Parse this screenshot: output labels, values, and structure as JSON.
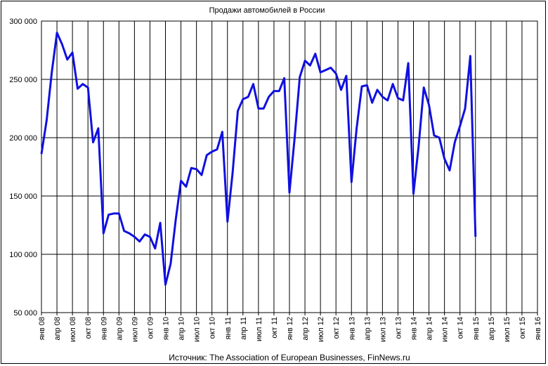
{
  "chart_data": {
    "type": "line",
    "title": "Продажи автомобилей в России",
    "source": "Источник: The Association of European Businesses, FinNews.ru",
    "ylim": [
      50000,
      300000
    ],
    "yticks": [
      50000,
      100000,
      150000,
      200000,
      250000,
      300000
    ],
    "ytick_labels": [
      "50 000",
      "100 000",
      "150 000",
      "200 000",
      "250 000",
      "300 000"
    ],
    "xtick_labels": [
      "янв 08",
      "апр 08",
      "июл 08",
      "окт 08",
      "янв 09",
      "апр 09",
      "июл 09",
      "окт 09",
      "янв 10",
      "апр 10",
      "июл 10",
      "окт 10",
      "янв 11",
      "апр 11",
      "июл 11",
      "окт 11",
      "янв 12",
      "апр 12",
      "июл 12",
      "окт 12",
      "янв 13",
      "апр 13",
      "июл 13",
      "окт 13",
      "янв 14",
      "апр 14",
      "июл 14",
      "окт 14",
      "янв 15",
      "апр 15",
      "июл 15",
      "окт 15",
      "янв 16"
    ],
    "grid": true,
    "line_color": "#1010e0",
    "series": [
      {
        "values": [
          186000,
          215000,
          256000,
          290000,
          280000,
          267000,
          273000,
          242000,
          246000,
          243000,
          196000,
          208000,
          118000,
          134000,
          135000,
          135000,
          120000,
          118000,
          115000,
          111000,
          117000,
          115000,
          105000,
          127000,
          74000,
          92000,
          130000,
          163000,
          158000,
          174000,
          173000,
          168000,
          185000,
          188000,
          190000,
          205000,
          128000,
          170000,
          223000,
          233000,
          235000,
          246000,
          225000,
          225000,
          235000,
          240000,
          240000,
          251000,
          153000,
          200000,
          252000,
          266000,
          262000,
          272000,
          256000,
          258000,
          260000,
          255000,
          241000,
          253000,
          162000,
          208000,
          244000,
          245000,
          230000,
          241000,
          235000,
          232000,
          246000,
          234000,
          232000,
          264000,
          152000,
          193000,
          243000,
          228000,
          202000,
          200000,
          182000,
          172000,
          196000,
          210000,
          225000,
          270000,
          115000
        ]
      }
    ]
  }
}
